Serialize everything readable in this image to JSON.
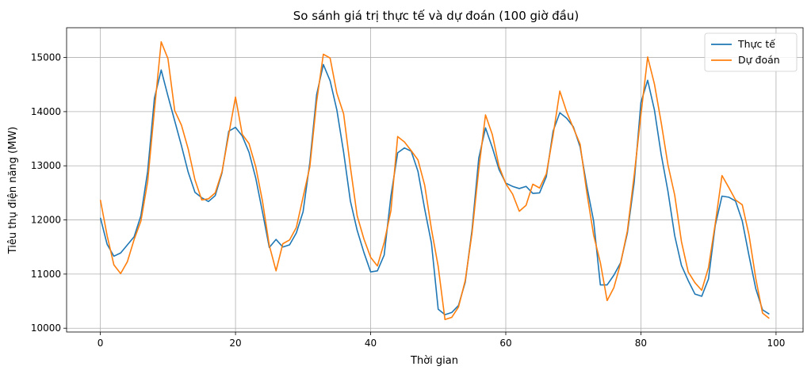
{
  "chart_data": {
    "type": "line",
    "title": "So sánh giá trị thực tế và dự đoán (100 giờ đầu)",
    "xlabel": "Thời gian",
    "ylabel": "Tiêu thụ điện năng (MW)",
    "xlim": [
      -5,
      104
    ],
    "ylim": [
      9930,
      15550
    ],
    "xticks": [
      0,
      20,
      40,
      60,
      80,
      100
    ],
    "yticks": [
      10000,
      11000,
      12000,
      13000,
      14000,
      15000
    ],
    "grid": true,
    "legend_position": "top-right",
    "x_start": 0,
    "x_step": 1,
    "series": [
      {
        "name": "Thực tế",
        "color": "#1f77b4",
        "values": [
          12040,
          11550,
          11330,
          11390,
          11540,
          11690,
          12080,
          12900,
          14250,
          14770,
          14290,
          13830,
          13370,
          12880,
          12510,
          12410,
          12340,
          12450,
          12870,
          13640,
          13710,
          13550,
          13250,
          12770,
          12140,
          11490,
          11640,
          11500,
          11540,
          11760,
          12150,
          13060,
          14310,
          14870,
          14570,
          14030,
          13250,
          12350,
          11810,
          11400,
          11040,
          11060,
          11350,
          12440,
          13240,
          13330,
          13270,
          12900,
          12200,
          11570,
          10350,
          10250,
          10290,
          10420,
          10850,
          11810,
          13140,
          13700,
          13340,
          12930,
          12680,
          12620,
          12580,
          12620,
          12490,
          12500,
          12800,
          13640,
          13980,
          13880,
          13720,
          13350,
          12620,
          11980,
          10800,
          10800,
          10980,
          11210,
          11760,
          12690,
          14170,
          14580,
          14030,
          13210,
          12530,
          11710,
          11160,
          10880,
          10630,
          10590,
          10910,
          11900,
          12440,
          12420,
          12350,
          11980,
          11340,
          10730,
          10340,
          10260
        ]
      },
      {
        "name": "Dự đoán",
        "color": "#ff7f0e",
        "values": [
          12370,
          11710,
          11170,
          11010,
          11230,
          11640,
          11980,
          12710,
          14030,
          15290,
          14980,
          14020,
          13750,
          13310,
          12740,
          12370,
          12390,
          12500,
          12890,
          13580,
          14270,
          13580,
          13410,
          12980,
          12340,
          11530,
          11060,
          11560,
          11630,
          11860,
          12420,
          12980,
          14180,
          15060,
          14990,
          14340,
          13960,
          12980,
          12080,
          11650,
          11310,
          11150,
          11580,
          12170,
          13540,
          13440,
          13280,
          13110,
          12640,
          11830,
          11140,
          10160,
          10200,
          10390,
          10880,
          11750,
          12930,
          13940,
          13580,
          12990,
          12670,
          12480,
          12160,
          12270,
          12660,
          12590,
          12850,
          13560,
          14380,
          14000,
          13700,
          13400,
          12500,
          11720,
          11210,
          10510,
          10750,
          11200,
          11800,
          12820,
          13940,
          15010,
          14510,
          13800,
          13020,
          12460,
          11600,
          11040,
          10840,
          10700,
          11120,
          11930,
          12820,
          12600,
          12370,
          12280,
          11720,
          10920,
          10280,
          10180
        ]
      }
    ]
  }
}
